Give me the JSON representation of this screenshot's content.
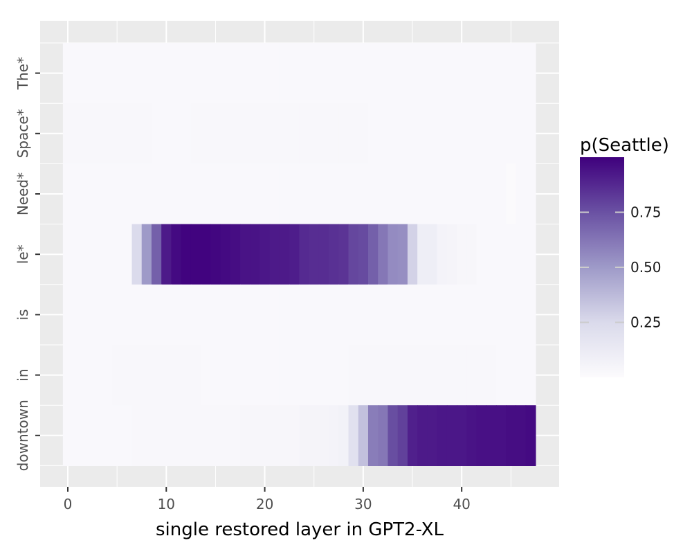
{
  "chart_data": {
    "type": "heatmap",
    "title": "",
    "xlabel": "single restored layer in GPT2-XL",
    "ylabel": "",
    "x_ticks": [
      0,
      10,
      20,
      30,
      40
    ],
    "x_range": [
      -0.5,
      47.5
    ],
    "rows": [
      "The*",
      "Space*",
      "Need*",
      "le*",
      "is",
      "in",
      "downtown"
    ],
    "grid": true,
    "legend": {
      "title": "p(Seattle)",
      "ticks": [
        0.25,
        0.5,
        0.75
      ],
      "tick_labels": [
        "0.25",
        "0.50",
        "0.75"
      ],
      "range": [
        0,
        1
      ],
      "placement": "right",
      "color_low": "#fcfbfd",
      "color_high": "#3f007d"
    },
    "series": [
      {
        "row": "The*",
        "values": [
          0.02,
          0.02,
          0.02,
          0.02,
          0.02,
          0.02,
          0.02,
          0.02,
          0.02,
          0.02,
          0.02,
          0.02,
          0.02,
          0.02,
          0.02,
          0.02,
          0.02,
          0.02,
          0.02,
          0.02,
          0.02,
          0.02,
          0.02,
          0.02,
          0.02,
          0.02,
          0.02,
          0.02,
          0.02,
          0.02,
          0.02,
          0.02,
          0.02,
          0.02,
          0.02,
          0.02,
          0.02,
          0.02,
          0.02,
          0.02,
          0.02,
          0.02,
          0.02,
          0.02,
          0.02,
          0.02,
          0.02,
          0.02
        ]
      },
      {
        "row": "Space*",
        "values": [
          0.03,
          0.03,
          0.03,
          0.03,
          0.03,
          0.03,
          0.03,
          0.03,
          0.03,
          0.02,
          0.02,
          0.02,
          0.02,
          0.03,
          0.03,
          0.03,
          0.03,
          0.03,
          0.03,
          0.03,
          0.03,
          0.03,
          0.03,
          0.03,
          0.03,
          0.03,
          0.03,
          0.03,
          0.03,
          0.03,
          0.03,
          0.02,
          0.02,
          0.02,
          0.02,
          0.02,
          0.02,
          0.02,
          0.02,
          0.02,
          0.02,
          0.02,
          0.02,
          0.02,
          0.02,
          0.02,
          0.02,
          0.02
        ]
      },
      {
        "row": "Need*",
        "values": [
          0.02,
          0.02,
          0.02,
          0.02,
          0.02,
          0.02,
          0.02,
          0.02,
          0.02,
          0.02,
          0.02,
          0.02,
          0.02,
          0.02,
          0.02,
          0.02,
          0.02,
          0.02,
          0.02,
          0.02,
          0.02,
          0.02,
          0.02,
          0.02,
          0.02,
          0.02,
          0.02,
          0.02,
          0.02,
          0.02,
          0.02,
          0.02,
          0.02,
          0.02,
          0.02,
          0.02,
          0.02,
          0.02,
          0.02,
          0.02,
          0.02,
          0.02,
          0.02,
          0.02,
          0.02,
          0.01,
          0.02,
          0.02
        ]
      },
      {
        "row": "le*",
        "values": [
          0.02,
          0.02,
          0.02,
          0.02,
          0.02,
          0.02,
          0.02,
          0.24,
          0.5,
          0.7,
          0.92,
          0.97,
          0.99,
          0.99,
          0.99,
          0.98,
          0.97,
          0.96,
          0.94,
          0.94,
          0.93,
          0.92,
          0.92,
          0.91,
          0.87,
          0.86,
          0.86,
          0.85,
          0.84,
          0.78,
          0.77,
          0.7,
          0.62,
          0.55,
          0.54,
          0.28,
          0.1,
          0.1,
          0.06,
          0.05,
          0.04,
          0.04,
          0.02,
          0.02,
          0.02,
          0.02,
          0.02,
          0.02
        ]
      },
      {
        "row": "is",
        "values": [
          0.02,
          0.02,
          0.02,
          0.02,
          0.02,
          0.02,
          0.02,
          0.02,
          0.02,
          0.02,
          0.02,
          0.02,
          0.02,
          0.02,
          0.02,
          0.02,
          0.02,
          0.02,
          0.02,
          0.02,
          0.02,
          0.02,
          0.02,
          0.02,
          0.02,
          0.02,
          0.02,
          0.02,
          0.02,
          0.02,
          0.02,
          0.02,
          0.02,
          0.02,
          0.02,
          0.02,
          0.02,
          0.02,
          0.02,
          0.02,
          0.02,
          0.02,
          0.02,
          0.02,
          0.02,
          0.02,
          0.02,
          0.02
        ]
      },
      {
        "row": "in",
        "values": [
          0.02,
          0.02,
          0.02,
          0.02,
          0.02,
          0.03,
          0.03,
          0.03,
          0.03,
          0.03,
          0.03,
          0.03,
          0.03,
          0.03,
          0.02,
          0.02,
          0.02,
          0.02,
          0.02,
          0.02,
          0.02,
          0.02,
          0.02,
          0.02,
          0.02,
          0.02,
          0.02,
          0.02,
          0.02,
          0.03,
          0.03,
          0.03,
          0.03,
          0.03,
          0.03,
          0.03,
          0.03,
          0.03,
          0.03,
          0.03,
          0.03,
          0.03,
          0.03,
          0.03,
          0.02,
          0.02,
          0.02,
          0.02
        ]
      },
      {
        "row": "downtown",
        "values": [
          0.02,
          0.02,
          0.02,
          0.02,
          0.02,
          0.02,
          0.02,
          0.03,
          0.03,
          0.03,
          0.03,
          0.03,
          0.03,
          0.03,
          0.03,
          0.03,
          0.03,
          0.03,
          0.04,
          0.04,
          0.04,
          0.04,
          0.04,
          0.04,
          0.05,
          0.05,
          0.05,
          0.06,
          0.07,
          0.2,
          0.35,
          0.6,
          0.62,
          0.76,
          0.8,
          0.9,
          0.92,
          0.92,
          0.93,
          0.93,
          0.93,
          0.94,
          0.95,
          0.95,
          0.95,
          0.96,
          0.96,
          0.97
        ]
      }
    ]
  }
}
